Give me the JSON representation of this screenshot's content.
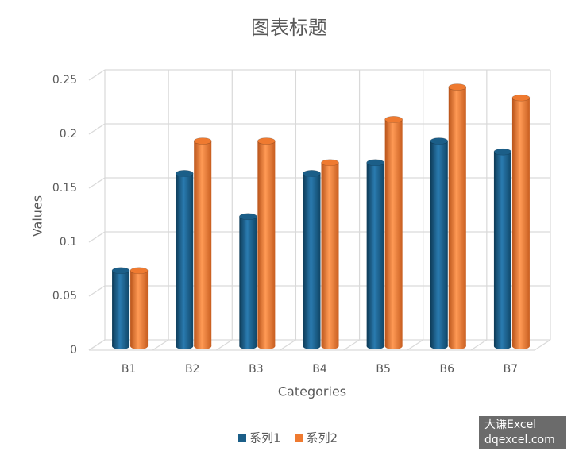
{
  "chart_data": {
    "type": "bar3d",
    "title": "图表标题",
    "x_label": "Categories",
    "y_label": "Values",
    "categories": [
      "B1",
      "B2",
      "B3",
      "B4",
      "B5",
      "B6",
      "B7"
    ],
    "series": [
      {
        "name": "系列1",
        "color": "#1b5e88",
        "values": [
          0.07,
          0.16,
          0.12,
          0.16,
          0.17,
          0.19,
          0.18
        ]
      },
      {
        "name": "系列2",
        "color": "#ef7a30",
        "values": [
          0.07,
          0.19,
          0.19,
          0.17,
          0.21,
          0.24,
          0.23
        ]
      }
    ],
    "ylim": [
      0,
      0.25
    ],
    "yticks": [
      0,
      0.05,
      0.1,
      0.15,
      0.2,
      0.25
    ],
    "grid": true,
    "legend": "bottom"
  },
  "watermark": [
    "大谦Excel",
    "dqexcel.com"
  ]
}
